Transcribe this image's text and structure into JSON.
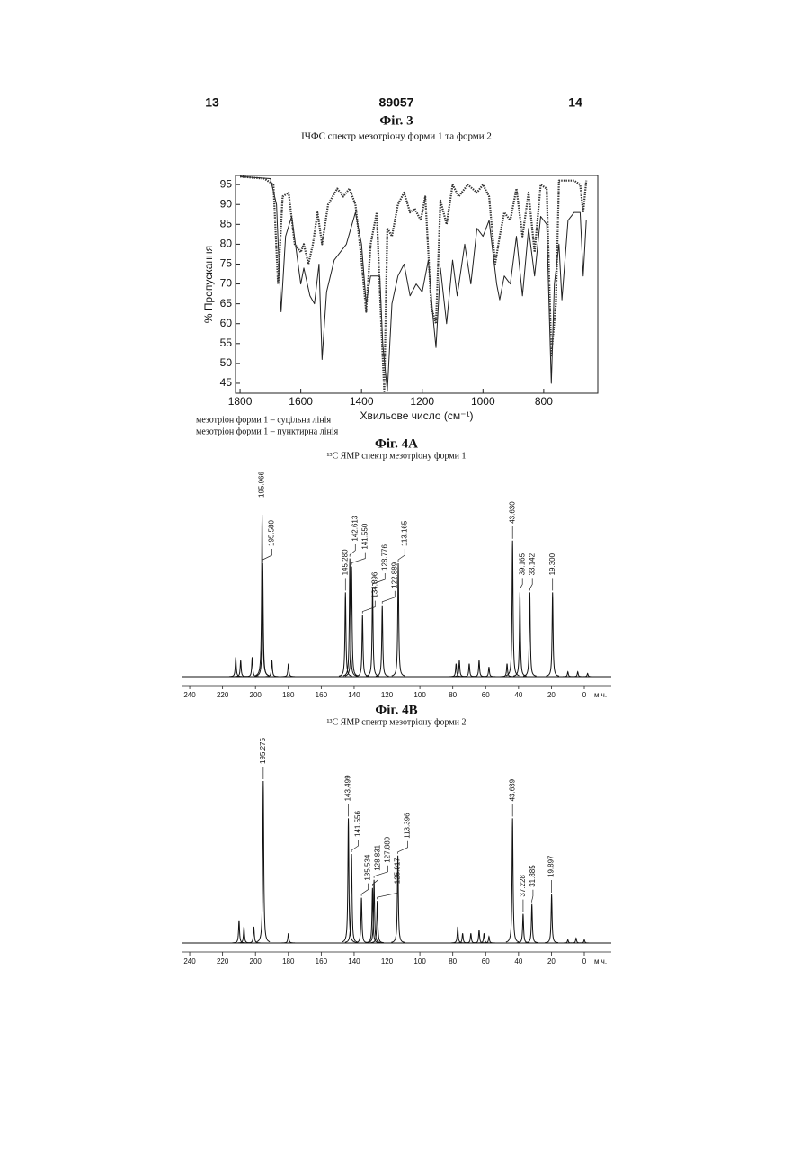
{
  "header": {
    "left": "13",
    "center": "89057",
    "right": "14"
  },
  "chart_data": [
    {
      "type": "line",
      "title": "Фіг. 3",
      "subtitle": "ІЧФС спектр мезотріону форми 1 та форми 2",
      "x_label": "Хвильове число (см⁻¹)",
      "y_label": "% Пропускання",
      "xlim": [
        1815,
        622
      ],
      "ylim": [
        42.5,
        97.3
      ],
      "xticks": [
        1800,
        1600,
        1400,
        1200,
        1000,
        800
      ],
      "yticks": [
        45,
        50,
        55,
        60,
        65,
        70,
        75,
        80,
        85,
        90,
        95
      ],
      "legend": "bottom-left",
      "series": [
        {
          "name": "мезотріон форми 1 – суцільна лінія",
          "color": "#222222",
          "dash": "solid",
          "x": [
            1800,
            1700,
            1680,
            1665,
            1650,
            1630,
            1600,
            1590,
            1570,
            1555,
            1540,
            1530,
            1515,
            1490,
            1450,
            1420,
            1400,
            1385,
            1370,
            1340,
            1330,
            1315,
            1300,
            1280,
            1260,
            1240,
            1220,
            1200,
            1180,
            1165,
            1155,
            1140,
            1120,
            1100,
            1085,
            1060,
            1040,
            1020,
            1000,
            980,
            955,
            945,
            930,
            910,
            890,
            870,
            850,
            830,
            810,
            790,
            775,
            765,
            750,
            740,
            720,
            700,
            680,
            670,
            660
          ],
          "values": [
            97,
            96.5,
            90,
            63,
            82,
            87,
            70,
            74,
            67,
            65,
            75,
            51,
            68,
            76,
            80,
            88,
            80,
            65,
            72,
            72,
            55,
            43,
            65,
            72,
            75,
            67,
            70,
            68,
            76,
            62,
            54,
            74,
            60,
            76,
            67,
            80,
            70,
            84,
            82,
            86,
            70,
            66,
            72,
            70,
            82,
            67,
            84,
            72,
            87,
            85,
            45,
            70,
            80,
            66,
            86,
            88,
            88,
            72,
            86
          ]
        },
        {
          "name": "мезотріон форми 1 – пунктирна лінія",
          "color": "#333333",
          "dash": "dotted",
          "x": [
            1800,
            1720,
            1690,
            1675,
            1660,
            1640,
            1620,
            1600,
            1590,
            1575,
            1560,
            1545,
            1530,
            1510,
            1480,
            1460,
            1440,
            1420,
            1400,
            1385,
            1370,
            1350,
            1335,
            1325,
            1315,
            1300,
            1280,
            1260,
            1240,
            1225,
            1205,
            1190,
            1170,
            1155,
            1140,
            1120,
            1100,
            1080,
            1050,
            1020,
            1000,
            980,
            960,
            945,
            930,
            910,
            890,
            870,
            850,
            830,
            810,
            790,
            775,
            760,
            750,
            720,
            700,
            680,
            670,
            660
          ],
          "values": [
            97,
            96.5,
            95,
            70,
            92,
            93,
            80,
            78,
            80,
            75,
            80,
            88,
            80,
            90,
            94,
            92,
            94,
            90,
            76,
            63,
            80,
            88,
            60,
            43,
            84,
            82,
            90,
            93,
            88,
            89,
            86,
            92,
            64,
            60,
            91,
            85,
            95,
            92,
            95,
            93,
            95,
            92,
            75,
            82,
            88,
            86,
            94,
            82,
            93,
            78,
            95,
            94,
            52,
            65,
            96,
            96,
            96,
            95,
            88,
            96
          ]
        }
      ]
    },
    {
      "type": "nmr",
      "title": "Фіг. 4А",
      "subtitle": "¹³С ЯМР спектр мезотріону форми 1",
      "x_unit": "м.ч.",
      "xlim": [
        244.4,
        -16.4
      ],
      "ylim": [
        0,
        100
      ],
      "xticks": [
        240,
        220,
        200,
        180,
        160,
        140,
        120,
        100,
        80,
        60,
        40,
        20,
        0
      ],
      "color": "#111111",
      "peaks": {
        "x": [
          212,
          209,
          202,
          195.966,
          195.58,
          190,
          180,
          145.28,
          142.613,
          141.55,
          134.896,
          128.776,
          122.889,
          113.165,
          78,
          76,
          70,
          64,
          58,
          47,
          43.63,
          39.165,
          33.142,
          19.3,
          10,
          4,
          -2
        ],
        "x_labels": [
          null,
          null,
          null,
          "195.966",
          "195.580",
          null,
          null,
          "145.280",
          "142.613",
          "141.550",
          "134.896",
          "128.776",
          "122.889",
          "113.165",
          null,
          null,
          null,
          null,
          null,
          null,
          "43.630",
          "39.165",
          "33.142",
          "19.300",
          null,
          null,
          null
        ],
        "values": [
          12,
          10,
          12,
          100,
          70,
          10,
          8,
          52,
          73,
          68,
          38,
          55,
          44,
          70,
          8,
          10,
          8,
          10,
          6,
          8,
          84,
          52,
          52,
          52,
          3,
          3,
          2
        ]
      }
    },
    {
      "type": "nmr",
      "title": "Фіг. 4В",
      "subtitle": "¹³С ЯМР спектр мезотріону форми 2",
      "x_unit": "м.ч.",
      "xlim": [
        244.4,
        -16.4
      ],
      "ylim": [
        0,
        100
      ],
      "xticks": [
        240,
        220,
        200,
        180,
        160,
        140,
        120,
        100,
        80,
        60,
        40,
        20,
        0
      ],
      "color": "#111111",
      "peaks": {
        "x": [
          210,
          207,
          201,
          195.275,
          180,
          143.499,
          141.556,
          135.534,
          128.831,
          127.88,
          125.917,
          113.396,
          77,
          74,
          69,
          64,
          61,
          58,
          43.639,
          37.228,
          31.885,
          19.897,
          10,
          5,
          0
        ],
        "x_labels": [
          null,
          null,
          null,
          "195.275",
          null,
          "143.499",
          "141.556",
          "135.534",
          "128.831",
          "127.880",
          "125.917",
          "113.396",
          null,
          null,
          null,
          null,
          null,
          null,
          "43.639",
          "37.228",
          "31.885",
          "19.897",
          null,
          null,
          null
        ],
        "values": [
          14,
          10,
          10,
          100,
          6,
          77,
          55,
          28,
          34,
          39,
          26,
          54,
          10,
          6,
          6,
          8,
          6,
          4,
          77,
          18,
          24,
          30,
          2,
          3,
          2
        ]
      }
    }
  ]
}
